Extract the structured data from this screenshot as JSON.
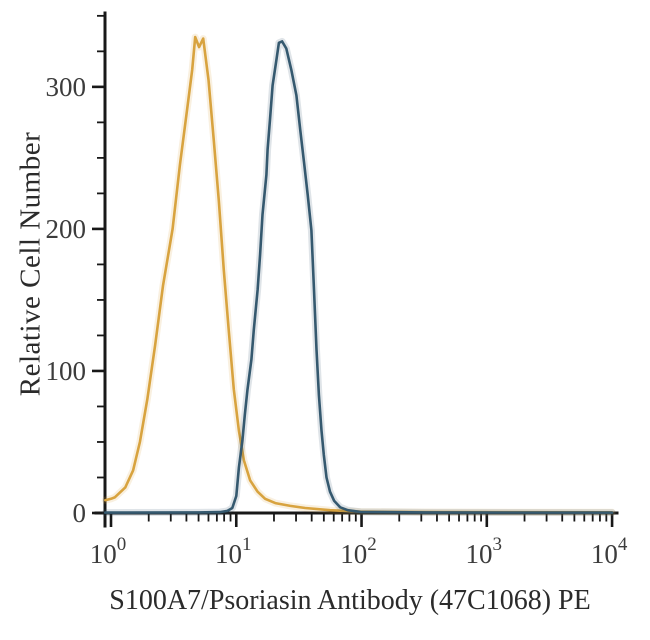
{
  "style": {
    "background": "#ffffff",
    "axis_color": "#181818",
    "tick_label_color": "#3c3c3c",
    "title_color": "#2b2b2b"
  },
  "chart_data": {
    "type": "line",
    "variant": "flow-cytometry-histogram-overlay",
    "title": "",
    "xlabel": "S100A7/Psoriasin Antibody (47C1068) PE",
    "ylabel": "Relative Cell Number",
    "x_scale": "log10",
    "xlim": [
      0.76,
      10000
    ],
    "ylim": [
      0,
      352
    ],
    "grid": false,
    "legend": null,
    "x_major_ticks": [
      1,
      10,
      100,
      1000,
      10000
    ],
    "x_tick_label_base": "10",
    "x_tick_exponents": [
      "0",
      "1",
      "2",
      "3",
      "4"
    ],
    "x_minor_tick_multipliers": [
      2,
      3,
      4,
      5,
      6,
      7,
      8,
      9
    ],
    "y_major_ticks": [
      0,
      100,
      200,
      300
    ],
    "y_minor_step": 25,
    "y_max_tick": 350,
    "series": [
      {
        "name": "orange-curve",
        "color": "#d8a33f",
        "points": [
          [
            0.9,
            9
          ],
          [
            1.0,
            10
          ],
          [
            1.07,
            11
          ],
          [
            1.3,
            18
          ],
          [
            1.5,
            30
          ],
          [
            1.7,
            50
          ],
          [
            1.95,
            80
          ],
          [
            2.25,
            118
          ],
          [
            2.6,
            160
          ],
          [
            3.1,
            200
          ],
          [
            3.55,
            245
          ],
          [
            4.05,
            284
          ],
          [
            4.45,
            312
          ],
          [
            4.7,
            335
          ],
          [
            5.05,
            328
          ],
          [
            5.45,
            334
          ],
          [
            6.0,
            305
          ],
          [
            6.6,
            263
          ],
          [
            7.25,
            220
          ],
          [
            7.95,
            171
          ],
          [
            8.7,
            129
          ],
          [
            9.55,
            87
          ],
          [
            10.5,
            58
          ],
          [
            11.5,
            37
          ],
          [
            12.9,
            23
          ],
          [
            14.8,
            15
          ],
          [
            17.0,
            10
          ],
          [
            20.5,
            7
          ],
          [
            27.0,
            5
          ],
          [
            35.5,
            3.5
          ],
          [
            56.0,
            2
          ],
          [
            98.0,
            1
          ],
          [
            320.0,
            0.6
          ],
          [
            10000,
            0.5
          ]
        ]
      },
      {
        "name": "blue-curve",
        "color": "#35596f",
        "points": [
          [
            0.9,
            0.3
          ],
          [
            5.0,
            0.4
          ],
          [
            7.4,
            0.6
          ],
          [
            8.5,
            1.5
          ],
          [
            9.3,
            3.5
          ],
          [
            10.0,
            12
          ],
          [
            10.5,
            32
          ],
          [
            11.2,
            51
          ],
          [
            11.7,
            69
          ],
          [
            12.3,
            87
          ],
          [
            13.2,
            108
          ],
          [
            13.8,
            129
          ],
          [
            14.8,
            157
          ],
          [
            15.5,
            182
          ],
          [
            16.2,
            210
          ],
          [
            17.4,
            238
          ],
          [
            17.8,
            256
          ],
          [
            18.6,
            277
          ],
          [
            19.5,
            301
          ],
          [
            20.9,
            319
          ],
          [
            21.9,
            331
          ],
          [
            23.2,
            332
          ],
          [
            25.1,
            327
          ],
          [
            27.5,
            312
          ],
          [
            30.2,
            294
          ],
          [
            32.4,
            270
          ],
          [
            34.7,
            247
          ],
          [
            37.2,
            224
          ],
          [
            39.8,
            199
          ],
          [
            41.7,
            157
          ],
          [
            43.7,
            115
          ],
          [
            45.7,
            83
          ],
          [
            47.9,
            58
          ],
          [
            50.0,
            41
          ],
          [
            52.5,
            25
          ],
          [
            56.0,
            15
          ],
          [
            60.5,
            8.5
          ],
          [
            67.5,
            4
          ],
          [
            77.5,
            2
          ],
          [
            98.0,
            0.8
          ],
          [
            320.0,
            0.4
          ],
          [
            10000,
            0.3
          ]
        ]
      }
    ]
  }
}
